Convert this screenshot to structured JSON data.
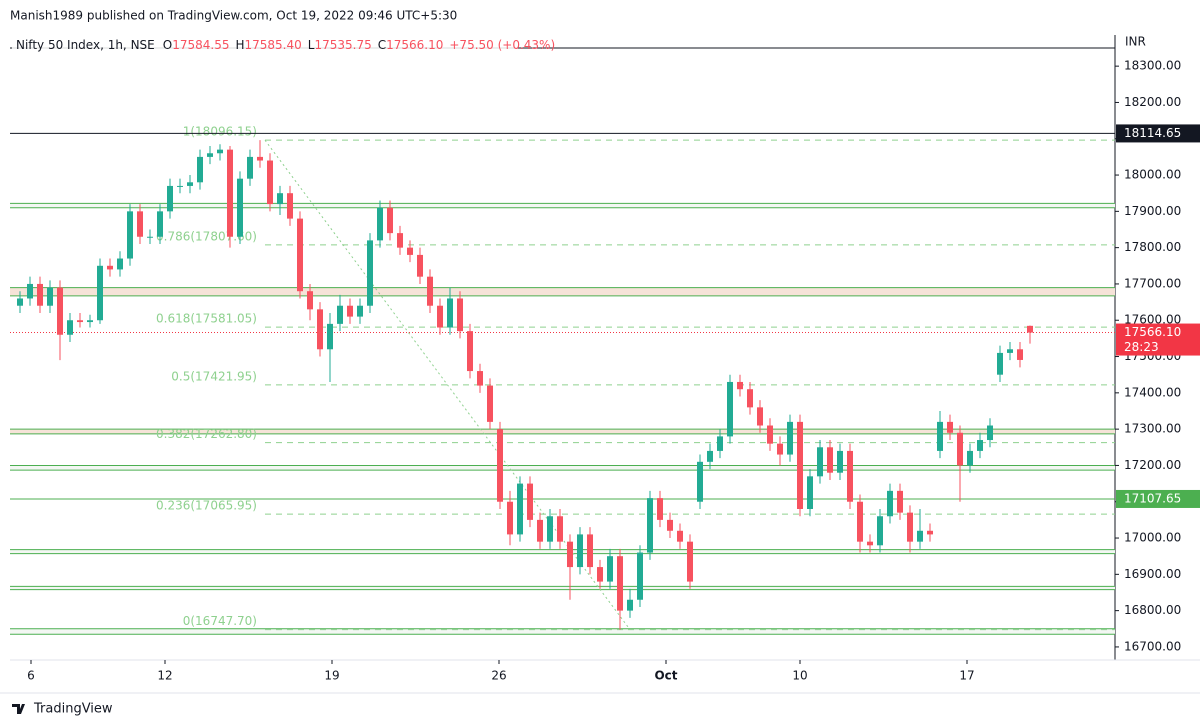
{
  "chart_data": {
    "type": "candlestick",
    "header": "Manish1989 published on TradingView.com, Oct 19, 2022 09:46 UTC+5:30",
    "legend": {
      "symbol": "Nifty 50 Index, 1h, NSE",
      "items": [
        {
          "key": "O",
          "value": "17584.55"
        },
        {
          "key": "H",
          "value": "17585.40"
        },
        {
          "key": "L",
          "value": "17535.75"
        },
        {
          "key": "C",
          "value": "17566.10"
        }
      ],
      "change": "+75.50 (+0.43%)"
    },
    "currency": "INR",
    "brand": "TradingView",
    "up_color": "#22ab94",
    "down_color": "#f7525f",
    "xlim": [
      -1,
      109.5
    ],
    "xticks": [
      {
        "value": 1.1,
        "label": "6"
      },
      {
        "value": 14.5,
        "label": "12"
      },
      {
        "value": 31.2,
        "label": "19"
      },
      {
        "value": 47.9,
        "label": "26"
      },
      {
        "value": 64.6,
        "label": "Oct"
      },
      {
        "value": 78,
        "label": "10"
      },
      {
        "value": 94.7,
        "label": "17"
      }
    ],
    "ylim": [
      16664,
      18350
    ],
    "yticks": [
      {
        "value": 18300,
        "label": "18300.00"
      },
      {
        "value": 18200,
        "label": "18200.00"
      },
      {
        "value": 18100,
        "label": "18100.00"
      },
      {
        "value": 18000,
        "label": "18000.00"
      },
      {
        "value": 17900,
        "label": "17900.00"
      },
      {
        "value": 17800,
        "label": "17800.00"
      },
      {
        "value": 17700,
        "label": "17700.00"
      },
      {
        "value": 17600,
        "label": "17600.00"
      },
      {
        "value": 17500,
        "label": "17500.00"
      },
      {
        "value": 17400,
        "label": "17400.00"
      },
      {
        "value": 17300,
        "label": "17300.00"
      },
      {
        "value": 17200,
        "label": "17200.00"
      },
      {
        "value": 17100,
        "label": "17100.00"
      },
      {
        "value": 17000,
        "label": "17000.00"
      },
      {
        "value": 16900,
        "label": "16900.00"
      },
      {
        "value": 16800,
        "label": "16800.00"
      },
      {
        "value": 16700,
        "label": "16700.00"
      }
    ],
    "open": [
      17640,
      17660,
      17700,
      17640,
      17690,
      17560,
      17600,
      17595,
      17600,
      17750,
      17740,
      17770,
      17900,
      17830,
      17830,
      17900,
      17970,
      17970,
      17980,
      18050,
      18060,
      18070,
      17830,
      17990,
      18050,
      18040,
      17920,
      17950,
      17880,
      17680,
      17630,
      17520,
      17590,
      17640,
      17610,
      17640,
      17820,
      17910,
      17840,
      17800,
      17780,
      17720,
      17640,
      17580,
      17660,
      17570,
      17460,
      17420,
      17300,
      17100,
      17010,
      17150,
      17050,
      16990,
      17060,
      16990,
      16920,
      17010,
      16920,
      16880,
      16950,
      16800,
      16830,
      16960,
      17110,
      17050,
      17020,
      16990,
      17100,
      17210,
      17240,
      17280,
      17430,
      17410,
      17360,
      17310,
      17260,
      17230,
      17320,
      17080,
      17170,
      17250,
      17180,
      17240,
      17100,
      16990,
      16980,
      17060,
      17130,
      17070,
      16990,
      17020,
      17240,
      17320,
      17290,
      17200,
      17240,
      17270,
      17450,
      17510,
      17520,
      17584.55
    ],
    "high": [
      17680,
      17720,
      17720,
      17710,
      17710,
      17620,
      17620,
      17615,
      17770,
      17770,
      17790,
      17920,
      17920,
      17850,
      17920,
      17990,
      17990,
      18000,
      18070,
      18080,
      18085,
      18080,
      18010,
      18070,
      18096.15,
      18060,
      17970,
      17970,
      17900,
      17700,
      17650,
      17620,
      17670,
      17660,
      17660,
      17840,
      17930,
      17930,
      17860,
      17820,
      17800,
      17740,
      17660,
      17690,
      17680,
      17590,
      17480,
      17440,
      17320,
      17130,
      17170,
      17170,
      17070,
      17080,
      17080,
      17010,
      17030,
      17030,
      16940,
      16970,
      16970,
      16860,
      16980,
      17130,
      17130,
      17070,
      17040,
      17010,
      17230,
      17260,
      17300,
      17450,
      17450,
      17430,
      17380,
      17330,
      17280,
      17340,
      17340,
      17190,
      17270,
      17270,
      17260,
      17260,
      17120,
      17010,
      17080,
      17150,
      17150,
      17090,
      17080,
      17040,
      17350,
      17340,
      17310,
      17260,
      17290,
      17330,
      17530,
      17540,
      17540,
      17585.4
    ],
    "low": [
      17620,
      17640,
      17620,
      17620,
      17490,
      17540,
      17580,
      17580,
      17590,
      17720,
      17720,
      17750,
      17810,
      17810,
      17810,
      17880,
      17950,
      17950,
      17960,
      18030,
      18040,
      17800,
      17810,
      17970,
      18020,
      17900,
      17890,
      17860,
      17660,
      17600,
      17500,
      17430,
      17570,
      17590,
      17590,
      17620,
      17800,
      17820,
      17780,
      17760,
      17700,
      17620,
      17560,
      17560,
      17550,
      17440,
      17400,
      17300,
      17080,
      16980,
      16990,
      17030,
      16970,
      16970,
      16970,
      16830,
      16900,
      16900,
      16860,
      16860,
      16747.7,
      16780,
      16810,
      16940,
      17030,
      17000,
      16970,
      16860,
      17080,
      17190,
      17220,
      17260,
      17390,
      17340,
      17290,
      17240,
      17200,
      17210,
      17060,
      17060,
      17150,
      17160,
      17160,
      17080,
      16960,
      16960,
      16960,
      17040,
      17050,
      16960,
      16970,
      16990,
      17220,
      17270,
      17100,
      17180,
      17220,
      17250,
      17430,
      17490,
      17470,
      17535.75
    ],
    "close": [
      17660,
      17700,
      17640,
      17690,
      17560,
      17600,
      17595,
      17600,
      17750,
      17740,
      17770,
      17900,
      17830,
      17830,
      17900,
      17970,
      17970,
      17980,
      18050,
      18060,
      18070,
      17830,
      17990,
      18050,
      18040,
      17920,
      17950,
      17880,
      17680,
      17630,
      17520,
      17590,
      17640,
      17610,
      17640,
      17820,
      17910,
      17840,
      17800,
      17780,
      17720,
      17640,
      17580,
      17660,
      17570,
      17460,
      17420,
      17320,
      17100,
      17010,
      17150,
      17050,
      16990,
      17060,
      16990,
      16920,
      17010,
      16920,
      16880,
      16950,
      16800,
      16830,
      16960,
      17110,
      17050,
      17020,
      16990,
      16880,
      17210,
      17240,
      17280,
      17430,
      17410,
      17360,
      17310,
      17260,
      17230,
      17320,
      17080,
      17170,
      17250,
      17180,
      17240,
      17100,
      16990,
      16980,
      17060,
      17130,
      17070,
      16990,
      17020,
      17010,
      17320,
      17290,
      17200,
      17240,
      17270,
      17310,
      17510,
      17520,
      17490.6,
      17566.1
    ],
    "fib_levels": [
      {
        "price": 18096.15,
        "label": "1(18096.15)"
      },
      {
        "price": 17807.6,
        "label": "0.786(17807.60)"
      },
      {
        "price": 17581.05,
        "label": "0.618(17581.05)"
      },
      {
        "price": 17421.95,
        "label": "0.5(17421.95)"
      },
      {
        "price": 17262.8,
        "label": "0.382(17262.80)"
      },
      {
        "price": 17065.95,
        "label": "0.236(17065.95)"
      },
      {
        "price": 16747.7,
        "label": "0(16747.70)"
      }
    ],
    "fib_color": "#8fd18f",
    "zones": [
      {
        "low": 17910,
        "high": 17922,
        "color": "#f3f7f3"
      },
      {
        "low": 17667,
        "high": 17690,
        "color": "#f6e3d8"
      },
      {
        "low": 17287,
        "high": 17300,
        "color": "#f6e3d8"
      },
      {
        "low": 17187,
        "high": 17200,
        "color": "#f3f7f3"
      },
      {
        "low": 16957,
        "high": 16968,
        "color": "#f3f7f3"
      },
      {
        "low": 16858,
        "high": 16867,
        "color": "#f3f7f3"
      },
      {
        "low": 16735,
        "high": 16750,
        "color": "#f3f7f3"
      }
    ],
    "zone_line_color": "#4caf50",
    "price_lines": [
      {
        "value": 18114.65,
        "label": "18114.65",
        "color": "#131722",
        "style": "solid"
      },
      {
        "value": 17566.1,
        "label": "17566.10",
        "color": "#f23645",
        "style": "dotted",
        "countdown": "28:23"
      },
      {
        "value": 17107.65,
        "label": "17107.65",
        "color": "#4caf50",
        "style": "solid"
      }
    ]
  }
}
